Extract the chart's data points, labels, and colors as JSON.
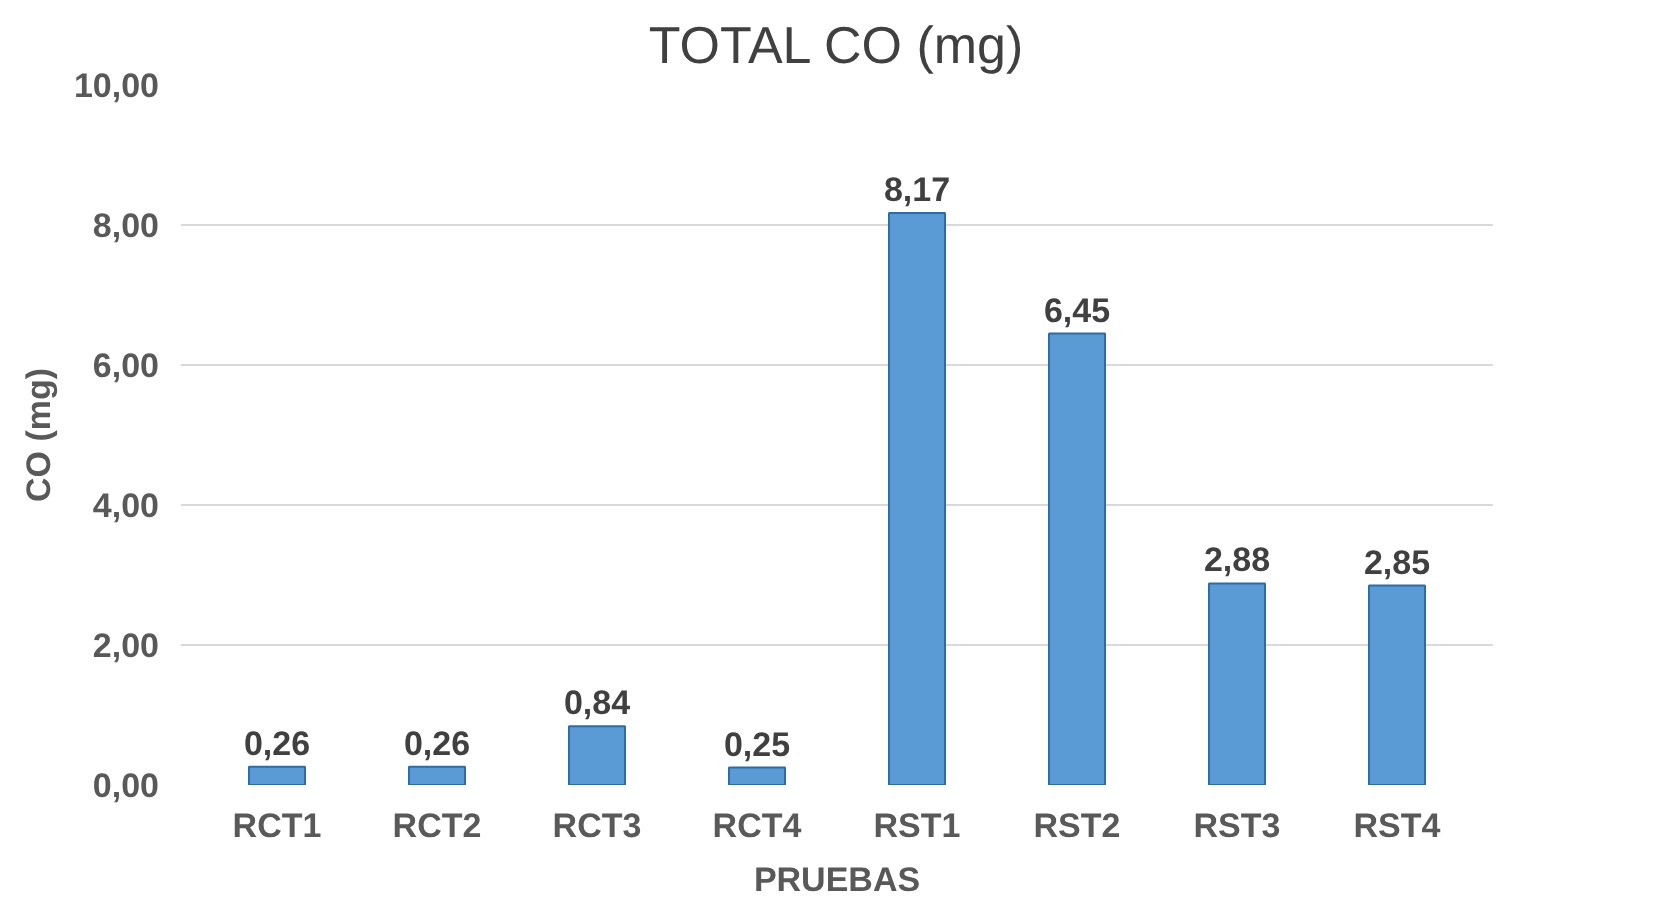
{
  "chart_data": {
    "type": "bar",
    "title": "TOTAL CO (mg)",
    "xlabel": "PRUEBAS",
    "ylabel": "CO (mg)",
    "categories": [
      "RCT1",
      "RCT2",
      "RCT3",
      "RCT4",
      "RST1",
      "RST2",
      "RST3",
      "RST4"
    ],
    "values": [
      0.26,
      0.26,
      0.84,
      0.25,
      8.17,
      6.45,
      2.88,
      2.85
    ],
    "value_labels": [
      "0,26",
      "0,26",
      "0,84",
      "0,25",
      "8,17",
      "6,45",
      "2,88",
      "2,85"
    ],
    "color": "#5b9bd5",
    "ylim": [
      0,
      10
    ],
    "yticks": [
      {
        "value": 0,
        "label": "0,00"
      },
      {
        "value": 2,
        "label": "2,00"
      },
      {
        "value": 4,
        "label": "4,00"
      },
      {
        "value": 6,
        "label": "6,00"
      },
      {
        "value": 8,
        "label": "8,00"
      },
      {
        "value": 10,
        "label": "10,00"
      }
    ],
    "grid": "y"
  }
}
